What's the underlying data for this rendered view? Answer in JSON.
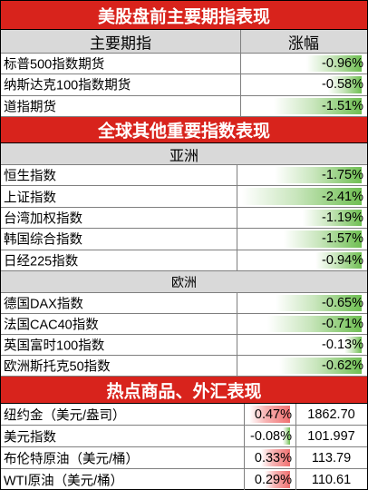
{
  "title": "美股盘前主要期指表现",
  "header": {
    "col_index": "主要期指",
    "col_change": "涨幅"
  },
  "futures": [
    {
      "name": "标普500指数期货",
      "change": "-0.96%",
      "level": 0.96
    },
    {
      "name": "纳斯达克100指数期货",
      "change": "-0.58%",
      "level": 0.58
    },
    {
      "name": "道指期货",
      "change": "-1.51%",
      "level": 1.51
    }
  ],
  "global_title": "全球其他重要指数表现",
  "asia_title": "亚洲",
  "asia": [
    {
      "name": "恒生指数",
      "change": "-1.75%",
      "level": 1.75
    },
    {
      "name": "上证指数",
      "change": "-2.41%",
      "level": 2.41
    },
    {
      "name": "台湾加权指数",
      "change": "-1.19%",
      "level": 1.19
    },
    {
      "name": "韩国综合指数",
      "change": "-1.57%",
      "level": 1.57
    },
    {
      "name": "日经225指数",
      "change": "-0.94%",
      "level": 0.94
    }
  ],
  "europe_title": "欧洲",
  "europe": [
    {
      "name": "德国DAX指数",
      "change": "-0.65%",
      "level": 0.65
    },
    {
      "name": "法国CAC40指数",
      "change": "-0.71%",
      "level": 0.71
    },
    {
      "name": "英国富时100指数",
      "change": "-0.13%",
      "level": 0.13
    },
    {
      "name": "欧洲斯托克50指数",
      "change": "-0.62%",
      "level": 0.62
    }
  ],
  "commodity_title": "热点商品、外汇表现",
  "commodities": [
    {
      "name": "纽约金（美元/盎司）",
      "change": "0.47%",
      "price": "1862.70",
      "level": 0.47
    },
    {
      "name": "美元指数",
      "change": "-0.08%",
      "price": "101.997",
      "level": 0.08
    },
    {
      "name": "布伦特原油（美元/桶）",
      "change": "0.33%",
      "price": "113.79",
      "level": 0.33
    },
    {
      "name": "WTI原油（美元/桶）",
      "change": "0.29%",
      "price": "110.61",
      "level": 0.29
    }
  ],
  "colors": {
    "section_red": "#d8231c",
    "header_gray": "#d9d9d9",
    "bar_green": "#6fbf52",
    "bar_red": "#f07070"
  }
}
